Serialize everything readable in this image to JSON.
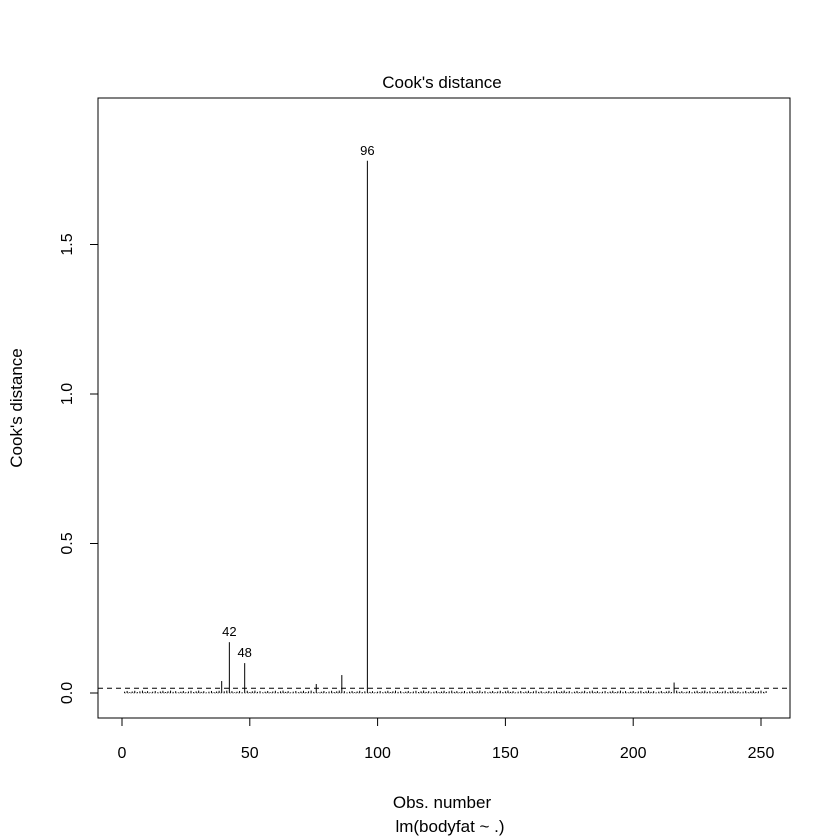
{
  "chart_data": {
    "type": "bar",
    "title": "Cook's distance",
    "xlabel": "Obs. number",
    "subtitle": "lm(bodyfat ~ .)",
    "ylabel": "Cook's distance",
    "xlim": [
      0,
      252
    ],
    "ylim": [
      0,
      1.79
    ],
    "x_ticks": [
      "0",
      "50",
      "100",
      "150",
      "200",
      "250"
    ],
    "y_ticks": [
      "0.0",
      "0.5",
      "1.0",
      "1.5"
    ],
    "n_obs": 252,
    "series": [
      {
        "highlighted": [
          {
            "x": 39,
            "y": 0.04
          },
          {
            "x": 42,
            "y": 0.17
          },
          {
            "x": 48,
            "y": 0.1
          },
          {
            "x": 76,
            "y": 0.03
          },
          {
            "x": 86,
            "y": 0.06
          },
          {
            "x": 96,
            "y": 1.78
          },
          {
            "x": 216,
            "y": 0.035
          }
        ]
      }
    ],
    "labeled_points": [
      {
        "label": "96",
        "x": 96,
        "y": 1.78
      },
      {
        "label": "42",
        "x": 42,
        "y": 0.17
      },
      {
        "label": "48",
        "x": 48,
        "y": 0.1
      }
    ],
    "reference_line": {
      "y": 0.016,
      "style": "dashed"
    },
    "baseline": {
      "y": 0,
      "style": "dotted"
    }
  }
}
